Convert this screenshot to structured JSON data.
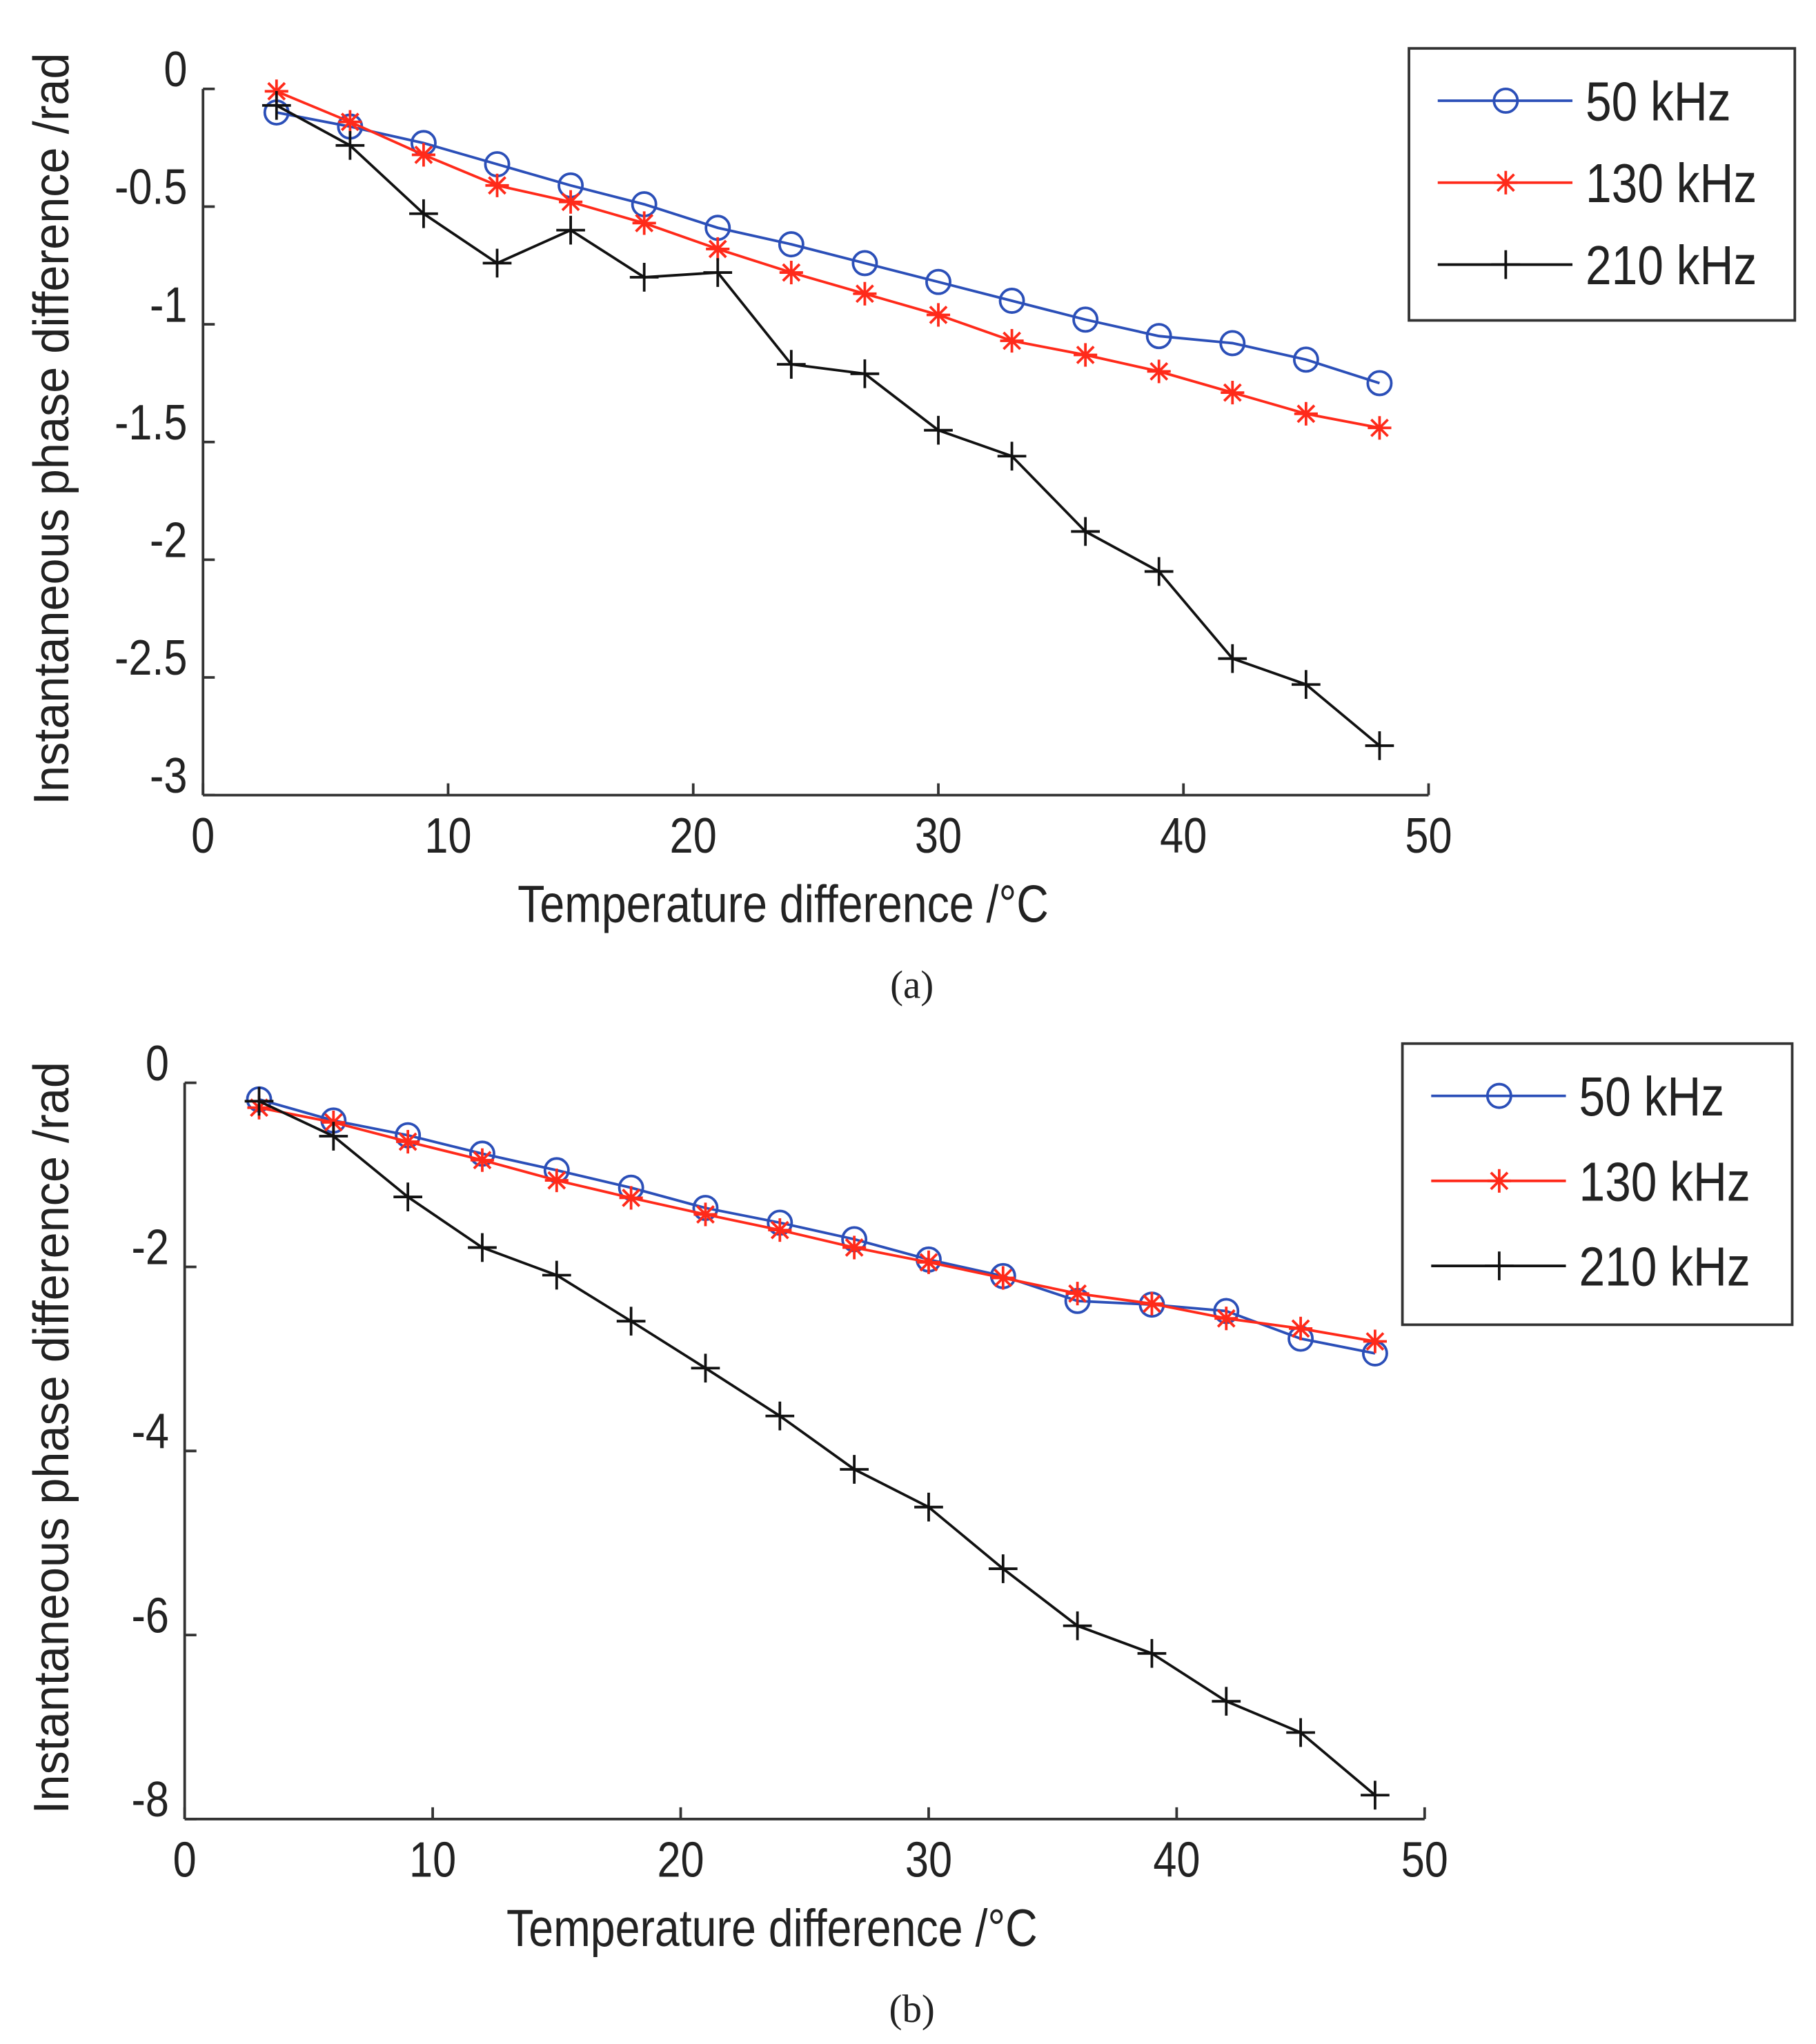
{
  "chart_data": [
    {
      "type": "line",
      "panel_label": "(a)",
      "xlabel": "Temperature difference /°C",
      "ylabel": "Instantaneous phase difference /rad",
      "xlim": [
        0,
        50
      ],
      "ylim": [
        -3,
        0
      ],
      "xticks": [
        0,
        10,
        20,
        30,
        40,
        50
      ],
      "xtick_labels": [
        "0",
        "10",
        "20",
        "30",
        "40",
        "50"
      ],
      "yticks": [
        0,
        -0.5,
        -1,
        -1.5,
        -2,
        -2.5,
        -3
      ],
      "ytick_labels": [
        "0",
        "-0.5",
        "-1",
        "-1.5",
        "-2",
        "-2.5",
        "-3"
      ],
      "grid": false,
      "legend_position": "top-right",
      "x": [
        3,
        6,
        9,
        12,
        15,
        18,
        21,
        24,
        27,
        30,
        33,
        36,
        39,
        42,
        45,
        48
      ],
      "series": [
        {
          "name": "50 kHz",
          "color": "#2b4fb8",
          "marker": "circle",
          "values": [
            -0.1,
            -0.16,
            -0.23,
            -0.32,
            -0.41,
            -0.49,
            -0.59,
            -0.66,
            -0.74,
            -0.82,
            -0.9,
            -0.98,
            -1.05,
            -1.08,
            -1.15,
            -1.25
          ]
        },
        {
          "name": "130 kHz",
          "color": "#ff2a1a",
          "marker": "asterisk",
          "values": [
            -0.01,
            -0.14,
            -0.28,
            -0.41,
            -0.48,
            -0.57,
            -0.68,
            -0.78,
            -0.87,
            -0.96,
            -1.07,
            -1.13,
            -1.2,
            -1.29,
            -1.38,
            -1.44
          ]
        },
        {
          "name": "210 kHz",
          "color": "#111111",
          "marker": "plus",
          "values": [
            -0.07,
            -0.24,
            -0.53,
            -0.74,
            -0.6,
            -0.8,
            -0.78,
            -1.17,
            -1.21,
            -1.45,
            -1.56,
            -1.88,
            -2.05,
            -2.42,
            -2.53,
            -2.79
          ]
        }
      ]
    },
    {
      "type": "line",
      "panel_label": "(b)",
      "xlabel": "Temperature difference /°C",
      "ylabel": "Instantaneous phase difference /rad",
      "xlim": [
        0,
        50
      ],
      "ylim": [
        -8,
        0
      ],
      "xticks": [
        0,
        10,
        20,
        30,
        40,
        50
      ],
      "xtick_labels": [
        "0",
        "10",
        "20",
        "30",
        "40",
        "50"
      ],
      "yticks": [
        0,
        -2,
        -4,
        -6,
        -8
      ],
      "ytick_labels": [
        "0",
        "-2",
        "-4",
        "-6",
        "-8"
      ],
      "grid": false,
      "legend_position": "top-right",
      "x": [
        3,
        6,
        9,
        12,
        15,
        18,
        21,
        24,
        27,
        30,
        33,
        36,
        39,
        42,
        45,
        48
      ],
      "series": [
        {
          "name": "50 kHz",
          "color": "#2b4fb8",
          "marker": "circle",
          "values": [
            -0.18,
            -0.41,
            -0.57,
            -0.77,
            -0.95,
            -1.14,
            -1.36,
            -1.52,
            -1.7,
            -1.92,
            -2.1,
            -2.37,
            -2.41,
            -2.48,
            -2.78,
            -2.94
          ]
        },
        {
          "name": "130 kHz",
          "color": "#ff2a1a",
          "marker": "asterisk",
          "values": [
            -0.27,
            -0.43,
            -0.64,
            -0.84,
            -1.06,
            -1.25,
            -1.43,
            -1.6,
            -1.79,
            -1.95,
            -2.12,
            -2.29,
            -2.4,
            -2.56,
            -2.67,
            -2.81
          ]
        },
        {
          "name": "210 kHz",
          "color": "#111111",
          "marker": "plus",
          "values": [
            -0.2,
            -0.58,
            -1.24,
            -1.79,
            -2.09,
            -2.59,
            -3.1,
            -3.62,
            -4.2,
            -4.61,
            -5.28,
            -5.9,
            -6.2,
            -6.72,
            -7.06,
            -7.74
          ]
        }
      ]
    }
  ]
}
